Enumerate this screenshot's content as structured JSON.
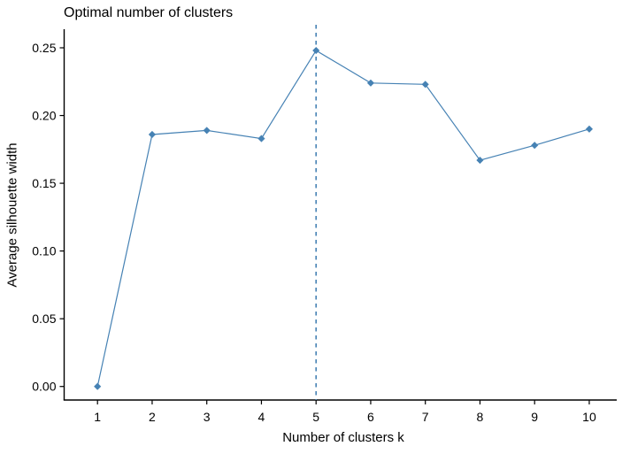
{
  "figure": {
    "title": "Optimal number of clusters"
  },
  "colors": {
    "series": "#4682B4",
    "axis": "#000000",
    "text": "#000000",
    "background": "#FFFFFF"
  },
  "chart_data": {
    "type": "line",
    "title": "Optimal number of clusters",
    "xlabel": "Number of clusters k",
    "ylabel": "Average silhouette width",
    "x": [
      1,
      2,
      3,
      4,
      5,
      6,
      7,
      8,
      9,
      10
    ],
    "values": [
      0.0,
      0.186,
      0.189,
      0.183,
      0.248,
      0.224,
      0.223,
      0.167,
      0.178,
      0.19
    ],
    "x_tick_labels": [
      "1",
      "2",
      "3",
      "4",
      "5",
      "6",
      "7",
      "8",
      "9",
      "10"
    ],
    "y_ticks": [
      0.0,
      0.05,
      0.1,
      0.15,
      0.2,
      0.25
    ],
    "y_tick_labels": [
      "0.00",
      "0.05",
      "0.10",
      "0.15",
      "0.20",
      "0.25"
    ],
    "ylim": [
      0,
      0.26
    ],
    "xlim": [
      1,
      10
    ],
    "grid": false,
    "legend": "none",
    "marker": "diamond",
    "series_color": "#4682B4",
    "vline": {
      "x": 5,
      "style": "dashed",
      "color": "#4682B4"
    }
  }
}
